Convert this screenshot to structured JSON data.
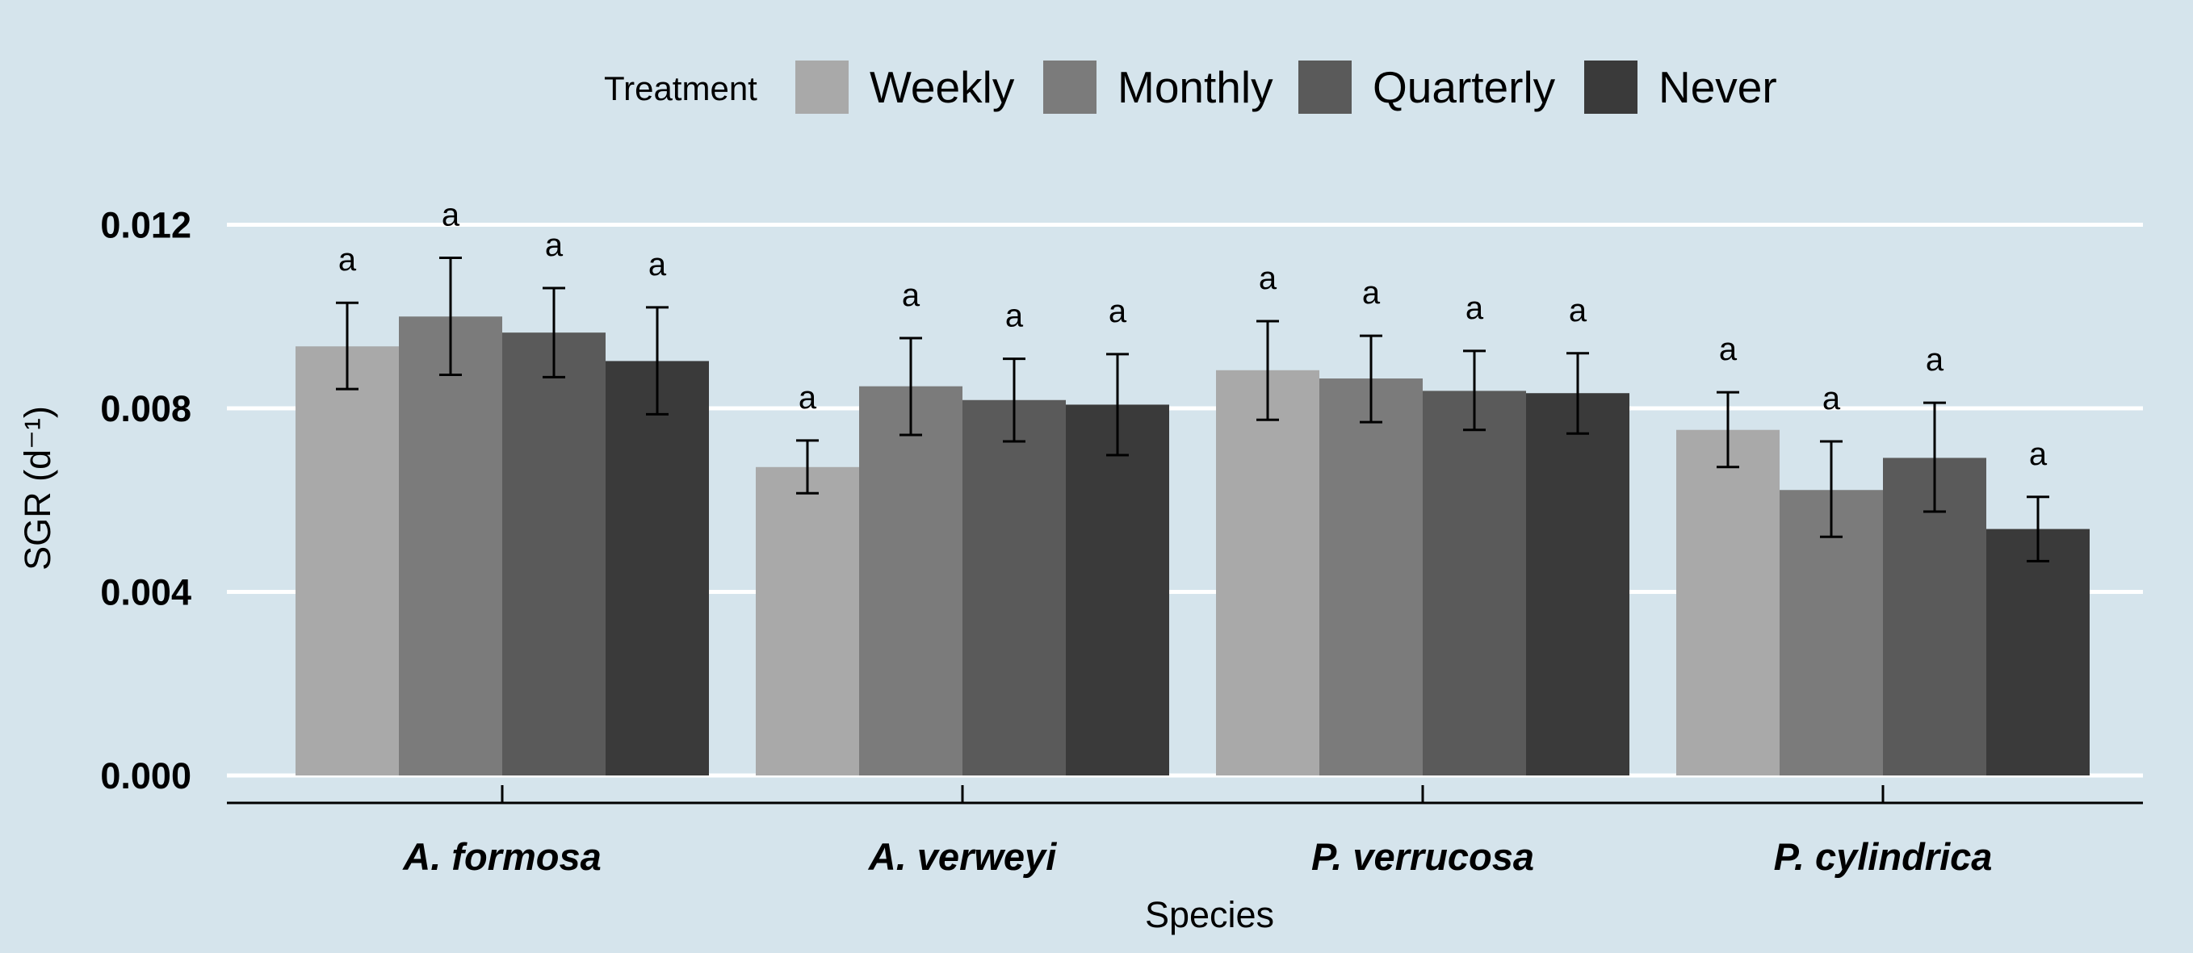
{
  "chart_data": {
    "type": "bar",
    "title": "",
    "xlabel": "Species",
    "ylabel": "SGR (d⁻¹)",
    "ylim": [
      0,
      0.0125
    ],
    "yticks": [
      "0.000",
      "0.004",
      "0.008",
      "0.012"
    ],
    "ytick_values": [
      0,
      0.004,
      0.008,
      0.012
    ],
    "grid": true,
    "legend": {
      "title": "Treatment",
      "position": "top"
    },
    "categories": [
      "A. formosa",
      "A. verweyi",
      "P. verrucosa",
      "P. cylindrica"
    ],
    "series": [
      {
        "name": "Weekly",
        "color": "#a9a9a9",
        "values": [
          0.00935,
          0.00672,
          0.00883,
          0.00753
        ],
        "err_low": [
          0.00842,
          0.00615,
          0.00775,
          0.00672
        ],
        "err_high": [
          0.0103,
          0.0073,
          0.0099,
          0.00835
        ],
        "labels": [
          "a",
          "a",
          "a",
          "a"
        ]
      },
      {
        "name": "Monthly",
        "color": "#7b7b7b",
        "values": [
          0.01,
          0.00848,
          0.00865,
          0.00622
        ],
        "err_low": [
          0.00873,
          0.00742,
          0.0077,
          0.0052
        ],
        "err_high": [
          0.01128,
          0.00953,
          0.00958,
          0.00728
        ],
        "labels": [
          "a",
          "a",
          "a",
          "a"
        ]
      },
      {
        "name": "Quarterly",
        "color": "#5a5a5a",
        "values": [
          0.00965,
          0.00818,
          0.00838,
          0.00692
        ],
        "err_low": [
          0.00868,
          0.00728,
          0.00753,
          0.00575
        ],
        "err_high": [
          0.01062,
          0.00908,
          0.00925,
          0.00812
        ],
        "labels": [
          "a",
          "a",
          "a",
          "a"
        ]
      },
      {
        "name": "Never",
        "color": "#3a3a3a",
        "values": [
          0.00903,
          0.00808,
          0.00833,
          0.00537
        ],
        "err_low": [
          0.00787,
          0.00698,
          0.00745,
          0.00467
        ],
        "err_high": [
          0.0102,
          0.00918,
          0.0092,
          0.00607
        ],
        "labels": [
          "a",
          "a",
          "a",
          "a"
        ]
      }
    ]
  }
}
